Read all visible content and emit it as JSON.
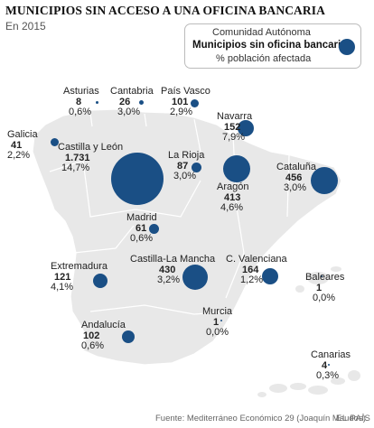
{
  "header": {
    "title": "MUNICIPIOS SIN ACCESO A UNA OFICINA BANCARIA",
    "subtitle": "En 2015"
  },
  "legend": {
    "region_label": "Comunidad Autónoma",
    "value_label": "Municipios sin oficina bancaria",
    "pct_label": "% población afectada"
  },
  "colors": {
    "bubble": "#1a4f85",
    "land": "#e8e8e8",
    "border": "#ffffff"
  },
  "regions": [
    {
      "key": "asturias",
      "name": "Asturias",
      "value": "8",
      "pct": "0,6%"
    },
    {
      "key": "cantabria",
      "name": "Cantabria",
      "value": "26",
      "pct": "3,0%"
    },
    {
      "key": "pais_vasco",
      "name": "País Vasco",
      "value": "101",
      "pct": "2,9%"
    },
    {
      "key": "navarra",
      "name": "Navarra",
      "value": "152",
      "pct": "7,9%"
    },
    {
      "key": "galicia",
      "name": "Galicia",
      "value": "41",
      "pct": "2,2%"
    },
    {
      "key": "castilla_leon",
      "name": "Castilla y León",
      "value": "1.731",
      "pct": "14,7%"
    },
    {
      "key": "la_rioja",
      "name": "La Rioja",
      "value": "87",
      "pct": "3,0%"
    },
    {
      "key": "aragon",
      "name": "Aragón",
      "value": "413",
      "pct": "4,6%"
    },
    {
      "key": "cataluna",
      "name": "Cataluña",
      "value": "456",
      "pct": "3,0%"
    },
    {
      "key": "madrid",
      "name": "Madrid",
      "value": "61",
      "pct": "0,6%"
    },
    {
      "key": "extremadura",
      "name": "Extremadura",
      "value": "121",
      "pct": "4,1%"
    },
    {
      "key": "castilla_mancha",
      "name": "Castilla-La Mancha",
      "value": "430",
      "pct": "3,2%"
    },
    {
      "key": "c_valenciana",
      "name": "C. Valenciana",
      "value": "164",
      "pct": "1,2%"
    },
    {
      "key": "baleares",
      "name": "Baleares",
      "value": "1",
      "pct": "0,0%"
    },
    {
      "key": "murcia",
      "name": "Murcia",
      "value": "1",
      "pct": "0,0%"
    },
    {
      "key": "andalucia",
      "name": "Andalucía",
      "value": "102",
      "pct": "0,6%"
    },
    {
      "key": "canarias",
      "name": "Canarias",
      "value": "4",
      "pct": "0,3%"
    }
  ],
  "footer": {
    "source": "Fuente: Mediterráneo Económico 29 (Joaquín Maudos).",
    "brand": "EL PAÍS"
  }
}
